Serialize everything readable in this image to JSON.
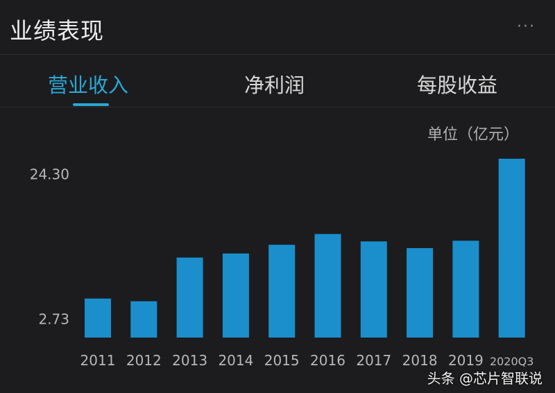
{
  "header": {
    "title": "业绩表现",
    "more_label": "···"
  },
  "tabs": [
    {
      "label": "营业收入",
      "active": true
    },
    {
      "label": "净利润",
      "active": false
    },
    {
      "label": "每股收益",
      "active": false
    }
  ],
  "colors": {
    "accent": "#2aa7d6",
    "bar": "#1a8fcc",
    "background": "#1c1c1e"
  },
  "watermark": "头条 @芯片智联说",
  "chart_data": {
    "type": "bar",
    "unit_label": "单位（亿元）",
    "ytick_labels": [
      "24.30",
      "2.73"
    ],
    "yticks": [
      24.3,
      2.73
    ],
    "categories": [
      "2011",
      "2012",
      "2013",
      "2014",
      "2015",
      "2016",
      "2017",
      "2018",
      "2019",
      "2020Q3"
    ],
    "values": [
      5.8,
      5.4,
      11.9,
      12.5,
      13.8,
      15.4,
      14.3,
      13.3,
      14.4,
      26.6
    ],
    "ylim": [
      0,
      30
    ],
    "grid": false
  }
}
